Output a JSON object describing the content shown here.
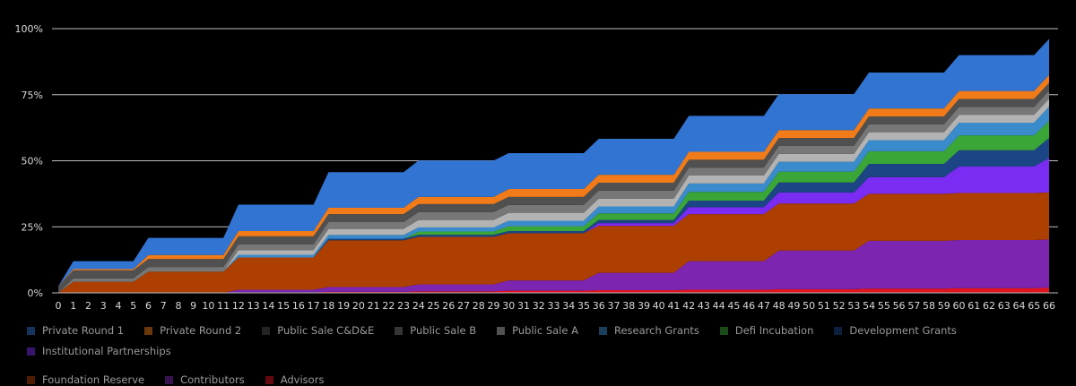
{
  "chart_data": {
    "type": "area",
    "stacked": true,
    "x_start": 0,
    "x_end": 66,
    "y_ticks": [
      "0%",
      "25%",
      "50%",
      "75%",
      "100%"
    ],
    "ylim": [
      0,
      100
    ],
    "grid": true,
    "legend_position": "bottom",
    "series": [
      {
        "name": "Advisors",
        "color": "#e0141e",
        "steps": [
          [
            0,
            0.0
          ],
          [
            12,
            0.2
          ],
          [
            18,
            0.4
          ],
          [
            24,
            0.6
          ],
          [
            30,
            0.8
          ],
          [
            36,
            1.0
          ],
          [
            42,
            1.2
          ],
          [
            48,
            1.4
          ],
          [
            54,
            1.6
          ],
          [
            60,
            1.8
          ],
          [
            66,
            2.0
          ]
        ]
      },
      {
        "name": "Contributors",
        "color": "#7c25b0",
        "steps": [
          [
            0,
            0.0
          ],
          [
            12,
            1.0
          ],
          [
            18,
            1.8
          ],
          [
            24,
            2.6
          ],
          [
            30,
            3.9
          ],
          [
            36,
            6.6
          ],
          [
            42,
            10.8
          ],
          [
            48,
            14.6
          ],
          [
            54,
            18.1
          ],
          [
            60,
            18.2
          ],
          [
            66,
            18.2
          ]
        ]
      },
      {
        "name": "Foundation Reserve",
        "color": "#ad3f00",
        "steps": [
          [
            0,
            0.0
          ],
          [
            1,
            4.2
          ],
          [
            6,
            8.0
          ],
          [
            12,
            12.2
          ],
          [
            18,
            17.7
          ],
          [
            24,
            18.0
          ],
          [
            30,
            17.9
          ],
          [
            36,
            17.8
          ],
          [
            42,
            17.8
          ],
          [
            48,
            17.8
          ],
          [
            54,
            17.8
          ],
          [
            60,
            17.8
          ],
          [
            66,
            17.8
          ]
        ]
      },
      {
        "name": "Institutional Partnerships",
        "color": "#7a2cf2",
        "steps": [
          [
            0,
            0.0
          ],
          [
            36,
            1.0
          ],
          [
            42,
            2.6
          ],
          [
            48,
            4.2
          ],
          [
            54,
            6.3
          ],
          [
            60,
            10.0
          ],
          [
            66,
            13.0
          ]
        ]
      },
      {
        "name": "Development Grants",
        "color": "#1b4585",
        "steps": [
          [
            0,
            0.0
          ],
          [
            18,
            0.6
          ],
          [
            24,
            0.8
          ],
          [
            30,
            0.8
          ],
          [
            36,
            1.2
          ],
          [
            42,
            2.5
          ],
          [
            48,
            3.8
          ],
          [
            54,
            5.0
          ],
          [
            60,
            6.2
          ],
          [
            66,
            7.6
          ]
        ]
      },
      {
        "name": "Defi Incubation",
        "color": "#39a637",
        "steps": [
          [
            0,
            0.0
          ],
          [
            24,
            1.2
          ],
          [
            30,
            1.8
          ],
          [
            36,
            2.5
          ],
          [
            42,
            3.3
          ],
          [
            48,
            4.1
          ],
          [
            54,
            4.8
          ],
          [
            60,
            5.6
          ],
          [
            66,
            6.5
          ]
        ]
      },
      {
        "name": "Research Grants",
        "color": "#3a8bcb",
        "steps": [
          [
            0,
            0.0
          ],
          [
            12,
            1.0
          ],
          [
            18,
            1.4
          ],
          [
            24,
            1.6
          ],
          [
            30,
            2.1
          ],
          [
            36,
            2.6
          ],
          [
            42,
            3.2
          ],
          [
            48,
            3.7
          ],
          [
            54,
            4.2
          ],
          [
            60,
            4.8
          ],
          [
            66,
            5.4
          ]
        ]
      },
      {
        "name": "Public Sale A",
        "color": "#b3b3b3",
        "steps": [
          [
            0,
            0.0
          ],
          [
            12,
            1.8
          ],
          [
            18,
            2.3
          ],
          [
            24,
            2.8
          ],
          [
            30,
            3.0
          ],
          [
            36,
            3.0
          ],
          [
            42,
            3.0
          ],
          [
            48,
            3.0
          ],
          [
            54,
            3.0
          ],
          [
            60,
            3.0
          ],
          [
            66,
            3.0
          ]
        ]
      },
      {
        "name": "Public Sale B",
        "color": "#777777",
        "steps": [
          [
            0,
            0.0
          ],
          [
            1,
            1.3
          ],
          [
            6,
            1.8
          ],
          [
            12,
            2.2
          ],
          [
            18,
            2.6
          ],
          [
            24,
            3.0
          ],
          [
            30,
            3.0
          ],
          [
            36,
            3.0
          ],
          [
            42,
            3.0
          ],
          [
            48,
            3.0
          ],
          [
            54,
            3.0
          ],
          [
            60,
            3.0
          ],
          [
            66,
            3.0
          ]
        ]
      },
      {
        "name": "Public Sale C&D&E",
        "color": "#505050",
        "steps": [
          [
            0,
            2.5
          ],
          [
            1,
            3.0
          ],
          [
            18,
            3.0
          ],
          [
            66,
            3.0
          ]
        ]
      },
      {
        "name": "Private Round 2",
        "color": "#f07b18",
        "steps": [
          [
            0,
            0.0
          ],
          [
            1,
            0.5
          ],
          [
            6,
            1.5
          ],
          [
            12,
            2.0
          ],
          [
            18,
            2.4
          ],
          [
            24,
            2.7
          ],
          [
            30,
            3.0
          ],
          [
            36,
            3.0
          ],
          [
            42,
            3.0
          ],
          [
            48,
            3.0
          ],
          [
            54,
            3.0
          ],
          [
            60,
            3.0
          ],
          [
            66,
            3.0
          ]
        ]
      },
      {
        "name": "Private Round 1",
        "color": "#3274d2",
        "steps": [
          [
            0,
            0.0
          ],
          [
            1,
            3.0
          ],
          [
            6,
            6.5
          ],
          [
            12,
            10.0
          ],
          [
            18,
            13.5
          ],
          [
            24,
            13.8
          ],
          [
            30,
            13.6
          ],
          [
            36,
            13.6
          ],
          [
            42,
            13.6
          ],
          [
            48,
            13.6
          ],
          [
            54,
            13.6
          ],
          [
            60,
            13.6
          ],
          [
            66,
            13.6
          ]
        ]
      }
    ],
    "legend": [
      {
        "name": "Private Round 1",
        "color": "#3274d2"
      },
      {
        "name": "Private Round 2",
        "color": "#f07b18"
      },
      {
        "name": "Public Sale C&D&E",
        "color": "#505050"
      },
      {
        "name": "Public Sale B",
        "color": "#777777"
      },
      {
        "name": "Public Sale A",
        "color": "#b3b3b3"
      },
      {
        "name": "Research Grants",
        "color": "#3a8bcb"
      },
      {
        "name": "Defi Incubation",
        "color": "#39a637"
      },
      {
        "name": "Development Grants",
        "color": "#1b4585"
      },
      {
        "name": "Institutional Partnerships",
        "color": "#7a2cf2"
      },
      {
        "name": "Foundation Reserve",
        "color": "#ad3f00"
      },
      {
        "name": "Contributors",
        "color": "#7c25b0"
      },
      {
        "name": "Advisors",
        "color": "#e0141e"
      }
    ]
  }
}
